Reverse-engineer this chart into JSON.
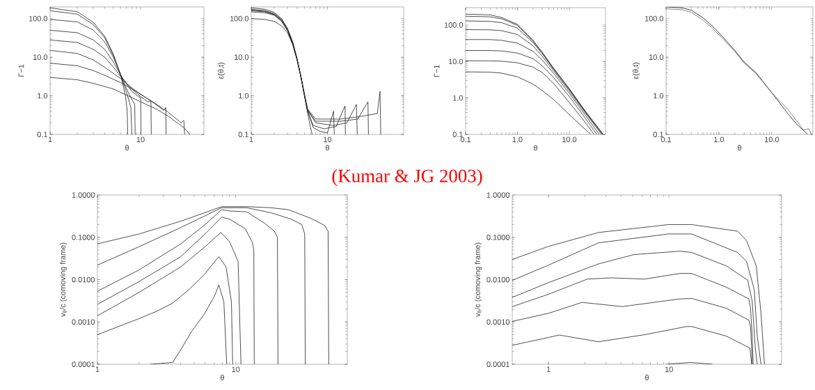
{
  "chart_data": [
    {
      "type": "line",
      "log": "xy",
      "xlabel": "θ",
      "ylabel": "Γ−1",
      "xlim": [
        1,
        50
      ],
      "ylim": [
        0.1,
        200
      ],
      "xticks": [
        1,
        10
      ],
      "yticks": [
        {
          "value": 0.1,
          "label": "0.1"
        },
        {
          "value": 1,
          "label": "1.0"
        },
        {
          "value": 10,
          "label": "10.0"
        },
        {
          "value": 100,
          "label": "100.0"
        }
      ],
      "series": [
        {
          "color": "#222222",
          "x": [
            1,
            2,
            3,
            4,
            5,
            6,
            6.8,
            7.1,
            7.2
          ],
          "values": [
            190,
            150,
            80,
            35,
            12,
            3.5,
            1,
            0.4,
            0.1
          ]
        },
        {
          "color": "#222222",
          "x": [
            1,
            2,
            3,
            4,
            5,
            6,
            7,
            7.8,
            8
          ],
          "values": [
            160,
            130,
            70,
            32,
            11,
            3.5,
            1.2,
            0.5,
            0.1
          ]
        },
        {
          "color": "#222222",
          "x": [
            1,
            2,
            3,
            4,
            5,
            6,
            7,
            8,
            8.6,
            8.7
          ],
          "values": [
            95,
            82,
            50,
            25,
            10,
            3.6,
            1.5,
            0.8,
            0.6,
            0.1
          ]
        },
        {
          "color": "#222222",
          "x": [
            1,
            2,
            3,
            4,
            5,
            6,
            7,
            8,
            9.5,
            10,
            10.1
          ],
          "values": [
            50,
            43,
            28,
            16,
            7.5,
            3.5,
            2,
            1.3,
            0.95,
            0.9,
            0.1
          ]
        },
        {
          "color": "#222222",
          "x": [
            1,
            2,
            3,
            4,
            5,
            6,
            7,
            8,
            10,
            12,
            13,
            13.1
          ],
          "values": [
            28,
            24,
            16,
            10,
            5.5,
            3.2,
            2.1,
            1.5,
            0.95,
            0.7,
            0.75,
            0.1
          ]
        },
        {
          "color": "#222222",
          "x": [
            1,
            2,
            3,
            4,
            6,
            8,
            10,
            14,
            18,
            19,
            19.1
          ],
          "values": [
            15,
            12.5,
            8.5,
            5.5,
            2.8,
            1.6,
            1.1,
            0.65,
            0.42,
            0.5,
            0.1
          ]
        },
        {
          "color": "#222222",
          "x": [
            1,
            2,
            3,
            4,
            6,
            8,
            10,
            15,
            20,
            28,
            30,
            30.6
          ],
          "values": [
            7,
            6,
            4.5,
            3.4,
            2.2,
            1.5,
            1.1,
            0.6,
            0.38,
            0.2,
            0.23,
            0.1
          ]
        },
        {
          "color": "#222222",
          "x": [
            1,
            2,
            3,
            5,
            8,
            10,
            15,
            20,
            30,
            35
          ],
          "values": [
            3,
            2.6,
            2.1,
            1.5,
            0.9,
            0.7,
            0.45,
            0.3,
            0.15,
            0.1
          ]
        }
      ]
    },
    {
      "type": "line",
      "log": "xy",
      "xlabel": "θ",
      "ylabel": "ε(θ,t)",
      "xlim": [
        1,
        100
      ],
      "ylim": [
        0.1,
        200
      ],
      "xticks": [
        1,
        10
      ],
      "yticks": [
        {
          "value": 0.1,
          "label": "0.1"
        },
        {
          "value": 1,
          "label": "1.0"
        },
        {
          "value": 10,
          "label": "10.0"
        },
        {
          "value": 100,
          "label": "100.0"
        }
      ],
      "series": [
        {
          "color": "#222222",
          "x": [
            1,
            1.5,
            2,
            2.5,
            3,
            3.5,
            4,
            4.5,
            5,
            5.5,
            6,
            6.3
          ],
          "values": [
            190,
            175,
            145,
            100,
            55,
            25,
            9,
            3,
            1,
            0.35,
            0.15,
            0.1
          ]
        },
        {
          "color": "#222222",
          "x": [
            1,
            1.5,
            2,
            2.5,
            3,
            3.5,
            4,
            4.5,
            5,
            5.5,
            6.5,
            8,
            10,
            12,
            12.3
          ],
          "values": [
            175,
            162,
            135,
            95,
            52,
            24,
            9,
            3,
            1,
            0.4,
            0.15,
            0.12,
            0.11,
            0.4,
            0.1
          ]
        },
        {
          "color": "#222222",
          "x": [
            1,
            1.5,
            2,
            2.5,
            3,
            3.5,
            4,
            4.5,
            5,
            5.5,
            6.5,
            9,
            13,
            17,
            17.2
          ],
          "values": [
            165,
            155,
            130,
            90,
            50,
            23,
            8.5,
            3,
            1,
            0.4,
            0.17,
            0.14,
            0.16,
            0.55,
            0.1
          ]
        },
        {
          "color": "#222222",
          "x": [
            1,
            1.5,
            2,
            2.5,
            3,
            3.5,
            4,
            4.5,
            5,
            5.5,
            7,
            12,
            18,
            24,
            24.6
          ],
          "values": [
            160,
            150,
            127,
            88,
            49,
            23,
            8.5,
            3,
            1,
            0.42,
            0.2,
            0.17,
            0.2,
            0.6,
            0.1
          ]
        },
        {
          "color": "#222222",
          "x": [
            1,
            1.5,
            2,
            2.5,
            3,
            3.5,
            4,
            4.5,
            5,
            5.5,
            7,
            15,
            25,
            34,
            34.5
          ],
          "values": [
            150,
            142,
            122,
            85,
            48,
            22,
            8.5,
            3,
            1,
            0.43,
            0.22,
            0.22,
            0.25,
            0.7,
            0.1
          ]
        },
        {
          "color": "#222222",
          "x": [
            1,
            1.5,
            2,
            2.5,
            3,
            3.5,
            4,
            4.5,
            5,
            5.5,
            7,
            15,
            30,
            45,
            49,
            50
          ],
          "values": [
            100,
            95,
            85,
            65,
            42,
            21,
            8.5,
            3,
            1.1,
            0.45,
            0.25,
            0.25,
            0.3,
            0.35,
            1.3,
            0.1
          ]
        }
      ]
    },
    {
      "type": "line",
      "log": "xy",
      "xlabel": "θ",
      "ylabel": "Γ−1",
      "xlim": [
        0.1,
        50
      ],
      "ylim": [
        0.1,
        300
      ],
      "xticks": [
        {
          "value": 0.1,
          "label": "0.1"
        },
        {
          "value": 1,
          "label": "1.0"
        },
        {
          "value": 10,
          "label": "10.0"
        }
      ],
      "yticks": [
        {
          "value": 0.1,
          "label": "0.1"
        },
        {
          "value": 1,
          "label": "1.0"
        },
        {
          "value": 10,
          "label": "10.0"
        },
        {
          "value": 100,
          "label": "100.0"
        }
      ],
      "series": [
        {
          "color": "#222222",
          "x": [
            0.1,
            0.3,
            0.5,
            1,
            2,
            3,
            5,
            10,
            20,
            45
          ],
          "values": [
            200,
            190,
            160,
            105,
            38,
            18,
            6.5,
            1.8,
            0.45,
            0.1
          ]
        },
        {
          "color": "#222222",
          "x": [
            0.1,
            0.3,
            0.5,
            1,
            2,
            3,
            5,
            10,
            20,
            45
          ],
          "values": [
            175,
            168,
            148,
            98,
            36,
            17.5,
            6.3,
            1.75,
            0.44,
            0.1
          ]
        },
        {
          "color": "#222222",
          "x": [
            0.1,
            0.3,
            0.5,
            1,
            2,
            3,
            5,
            10,
            20,
            44
          ],
          "values": [
            130,
            126,
            116,
            82,
            33,
            16.5,
            6.1,
            1.7,
            0.43,
            0.1
          ]
        },
        {
          "color": "#222222",
          "x": [
            0.1,
            0.3,
            0.5,
            1,
            2,
            3,
            5,
            10,
            20,
            42
          ],
          "values": [
            75,
            74,
            70,
            55,
            27,
            14,
            5.5,
            1.55,
            0.4,
            0.1
          ]
        },
        {
          "color": "#222222",
          "x": [
            0.1,
            0.3,
            0.5,
            1,
            2,
            3,
            5,
            10,
            20,
            38
          ],
          "values": [
            40,
            40,
            38,
            32,
            19,
            11,
            4.7,
            1.35,
            0.35,
            0.1
          ]
        },
        {
          "color": "#222222",
          "x": [
            0.1,
            0.3,
            0.5,
            1,
            2,
            3,
            5,
            10,
            20,
            34
          ],
          "values": [
            20,
            20,
            19.5,
            17,
            12,
            7.6,
            3.6,
            1.1,
            0.29,
            0.1
          ]
        },
        {
          "color": "#222222",
          "x": [
            0.1,
            0.3,
            0.5,
            1,
            2,
            3,
            5,
            10,
            20,
            30
          ],
          "values": [
            10.5,
            10.4,
            10.2,
            9.2,
            7,
            5,
            2.5,
            0.75,
            0.22,
            0.1
          ]
        },
        {
          "color": "#222222",
          "x": [
            0.1,
            0.3,
            0.5,
            1,
            2,
            3,
            5,
            10,
            20,
            26
          ],
          "values": [
            5.2,
            5.1,
            4.8,
            3.8,
            2.4,
            1.6,
            0.9,
            0.35,
            0.14,
            0.1
          ]
        }
      ]
    },
    {
      "type": "line",
      "log": "xy",
      "xlabel": "θ",
      "ylabel": "ε(θ,t)",
      "xlim": [
        0.1,
        60
      ],
      "ylim": [
        0.1,
        200
      ],
      "xticks": [
        {
          "value": 0.1,
          "label": "0.1"
        },
        {
          "value": 1,
          "label": "1.0"
        },
        {
          "value": 10,
          "label": "10.0"
        }
      ],
      "yticks": [
        {
          "value": 0.1,
          "label": "0.1"
        },
        {
          "value": 1,
          "label": "1.0"
        },
        {
          "value": 10,
          "label": "10.0"
        },
        {
          "value": 100,
          "label": "100.0"
        }
      ],
      "series": [
        {
          "color": "#111111",
          "x": [
            0.1,
            0.2,
            0.3,
            0.5,
            0.7,
            1,
            2,
            3,
            5,
            10,
            20,
            30,
            48
          ],
          "values": [
            200,
            190,
            165,
            105,
            70,
            43,
            15,
            7.5,
            4,
            1.2,
            0.35,
            0.18,
            0.1
          ]
        },
        {
          "color": "#666666",
          "x": [
            0.1,
            0.2,
            0.3,
            0.5,
            0.7,
            1,
            2,
            3,
            5,
            10,
            20,
            30,
            40,
            50,
            56
          ],
          "values": [
            180,
            170,
            145,
            92,
            62,
            38,
            14,
            7,
            3.8,
            1.2,
            0.45,
            0.22,
            0.13,
            0.14,
            0.1
          ]
        }
      ]
    },
    {
      "type": "line",
      "log": "xy",
      "xlabel": "θ",
      "ylabel": "v$_{θ}$/c (comoving frame)",
      "xlim": [
        1,
        64
      ],
      "ylim": [
        0.0001,
        1
      ],
      "xticks": [
        1,
        10
      ],
      "yticks": [
        {
          "value": 0.0001,
          "label": "0.0001"
        },
        {
          "value": 0.001,
          "label": "0.0010"
        },
        {
          "value": 0.01,
          "label": "0.0100"
        },
        {
          "value": 0.1,
          "label": "0.1000"
        },
        {
          "value": 1,
          "label": "1.0000"
        }
      ],
      "annotations": [
        "(Kumar & JG 2003)"
      ],
      "series": [
        {
          "color": "#222222",
          "x": [
            1,
            2,
            4,
            7.9,
            12,
            18,
            24,
            35,
            44,
            46.5,
            47
          ],
          "values": [
            0.07,
            0.12,
            0.24,
            0.53,
            0.53,
            0.5,
            0.45,
            0.28,
            0.19,
            0.14,
            0.0001
          ]
        },
        {
          "color": "#222222",
          "x": [
            1,
            2,
            4,
            7.9,
            12,
            18,
            25,
            30,
            31.5,
            31.8
          ],
          "values": [
            0.022,
            0.06,
            0.17,
            0.5,
            0.5,
            0.38,
            0.27,
            0.2,
            0.12,
            0.0001
          ]
        },
        {
          "color": "#222222",
          "x": [
            1,
            2,
            4,
            6,
            7.9,
            9,
            12,
            16,
            19,
            20,
            20.2
          ],
          "values": [
            0.0053,
            0.017,
            0.07,
            0.2,
            0.45,
            0.42,
            0.4,
            0.22,
            0.14,
            0.1,
            0.0001
          ]
        },
        {
          "color": "#222222",
          "x": [
            1,
            2,
            4,
            6,
            7.9,
            9,
            11.7,
            13.2,
            13.5,
            13.6
          ],
          "values": [
            0.0026,
            0.009,
            0.035,
            0.12,
            0.3,
            0.27,
            0.16,
            0.075,
            0.05,
            0.0001
          ]
        },
        {
          "color": "#222222",
          "x": [
            1,
            2,
            4,
            6,
            7.8,
            9,
            10.4,
            10.9
          ],
          "values": [
            0.0014,
            0.005,
            0.02,
            0.06,
            0.13,
            0.08,
            0.027,
            0.0001
          ]
        },
        {
          "color": "#222222",
          "x": [
            1,
            2,
            2.7,
            3.5,
            4.5,
            5.9,
            7.55,
            8.5,
            9.3,
            9.5
          ],
          "values": [
            0.0005,
            0.0012,
            0.0018,
            0.0028,
            0.0055,
            0.013,
            0.035,
            0.02,
            0.003,
            0.0001
          ]
        },
        {
          "color": "#222222",
          "x": [
            2.4,
            3.5,
            4,
            4.8,
            5.9,
            7,
            7.55,
            8.2,
            8.6
          ],
          "values": [
            0.0001,
            0.00011,
            0.00022,
            0.0006,
            0.0015,
            0.004,
            0.0075,
            0.003,
            0.0001
          ]
        }
      ]
    },
    {
      "type": "line",
      "log": "xy",
      "xlabel": "θ",
      "ylabel": "v$_{θ}$/c (comoving frame)",
      "xlim": [
        0.5,
        86
      ],
      "ylim": [
        0.0001,
        1
      ],
      "xticks": [
        1,
        10
      ],
      "yticks": [
        {
          "value": 0.0001,
          "label": "0.0001"
        },
        {
          "value": 0.001,
          "label": "0.0010"
        },
        {
          "value": 0.01,
          "label": "0.0100"
        },
        {
          "value": 0.1,
          "label": "0.1000"
        },
        {
          "value": 1,
          "label": "1.0000"
        }
      ],
      "series": [
        {
          "color": "#222222",
          "x": [
            0.5,
            1,
            2.6,
            9.9,
            15.4,
            37,
            44,
            53,
            58,
            62
          ],
          "values": [
            0.03,
            0.061,
            0.13,
            0.2,
            0.2,
            0.14,
            0.084,
            0.021,
            0.0016,
            0.0001
          ]
        },
        {
          "color": "#222222",
          "x": [
            0.5,
            1,
            2.6,
            9.9,
            15.4,
            37,
            44,
            51,
            54,
            58
          ],
          "values": [
            0.0096,
            0.022,
            0.074,
            0.12,
            0.12,
            0.044,
            0.027,
            0.0058,
            0.00046,
            0.0001
          ]
        },
        {
          "color": "#222222",
          "x": [
            0.5,
            1,
            2.6,
            5.1,
            12.3,
            15.4,
            30,
            45,
            49,
            52,
            54
          ],
          "values": [
            0.0038,
            0.0085,
            0.0235,
            0.039,
            0.047,
            0.044,
            0.021,
            0.0097,
            0.0031,
            0.00024,
            0.0001
          ]
        },
        {
          "color": "#222222",
          "x": [
            0.5,
            1,
            2.1,
            3.3,
            6.3,
            12.3,
            15.4,
            30,
            46,
            47.5,
            49,
            50
          ],
          "values": [
            0.0023,
            0.0045,
            0.0103,
            0.011,
            0.0103,
            0.014,
            0.014,
            0.0066,
            0.0035,
            0.0021,
            0.00046,
            0.0001
          ]
        },
        {
          "color": "#222222",
          "x": [
            0.5,
            1,
            1.9,
            4.1,
            12.3,
            15.4,
            30,
            46,
            47.5,
            48.5,
            49
          ],
          "values": [
            0.00103,
            0.0016,
            0.0029,
            0.0023,
            0.0035,
            0.0036,
            0.0021,
            0.0011,
            0.00075,
            0.00024,
            0.0001
          ]
        },
        {
          "color": "#222222",
          "x": [
            0.5,
            1,
            1.23,
            2.6,
            6.3,
            14,
            15.4,
            30,
            47,
            48.5
          ],
          "values": [
            0.00028,
            0.00043,
            0.00049,
            0.00034,
            0.0005,
            0.00078,
            0.00078,
            0.00046,
            0.00024,
            0.0001
          ]
        },
        {
          "color": "#222222",
          "x": [
            9.5,
            12,
            15,
            19,
            23
          ],
          "values": [
            0.0001,
            0.000105,
            0.00011,
            0.000105,
            0.0001
          ]
        }
      ]
    }
  ]
}
